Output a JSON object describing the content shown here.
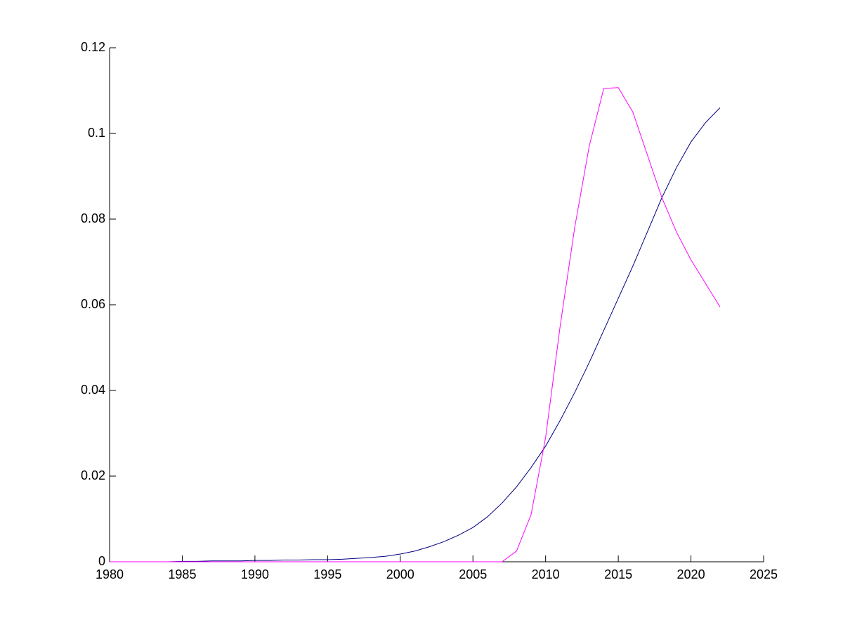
{
  "chart_data": {
    "type": "line",
    "x": [
      1980,
      1981,
      1982,
      1983,
      1984,
      1985,
      1986,
      1987,
      1988,
      1989,
      1990,
      1991,
      1992,
      1993,
      1994,
      1995,
      1996,
      1997,
      1998,
      1999,
      2000,
      2001,
      2002,
      2003,
      2004,
      2005,
      2006,
      2007,
      2008,
      2009,
      2010,
      2011,
      2012,
      2013,
      2014,
      2015,
      2016,
      2017,
      2018,
      2019,
      2020,
      2021,
      2022
    ],
    "series": [
      {
        "color": "#00007f",
        "values": [
          0,
          0,
          0,
          0,
          0,
          0.0001,
          0.0001,
          0.0002,
          0.0002,
          0.0002,
          0.0003,
          0.0003,
          0.0004,
          0.0004,
          0.0005,
          0.0005,
          0.0006,
          0.0008,
          0.001,
          0.0013,
          0.0018,
          0.0025,
          0.0035,
          0.0047,
          0.0062,
          0.008,
          0.0105,
          0.0137,
          0.0175,
          0.022,
          0.027,
          0.033,
          0.0395,
          0.0465,
          0.054,
          0.0615,
          0.069,
          0.077,
          0.085,
          0.092,
          0.098,
          0.1025,
          0.106
        ]
      },
      {
        "color": "#ff00ff",
        "values": [
          0,
          0,
          0,
          0,
          0,
          0,
          0,
          0,
          0,
          0,
          0,
          0,
          0,
          0,
          0,
          0,
          0,
          0,
          0,
          0,
          0,
          0,
          0,
          0,
          0,
          0,
          0,
          0,
          0.0025,
          0.011,
          0.029,
          0.055,
          0.078,
          0.097,
          0.1105,
          0.1107,
          0.105,
          0.095,
          0.085,
          0.077,
          0.0705,
          0.065,
          0.0595
        ]
      }
    ],
    "xlim": [
      1980,
      2025
    ],
    "xticks": [
      1980,
      1985,
      1990,
      1995,
      2000,
      2005,
      2010,
      2015,
      2020,
      2025
    ],
    "ylim": [
      0,
      0.12
    ],
    "yticks": [
      0,
      0.02,
      0.04,
      0.06,
      0.08,
      0.1,
      0.12
    ]
  }
}
